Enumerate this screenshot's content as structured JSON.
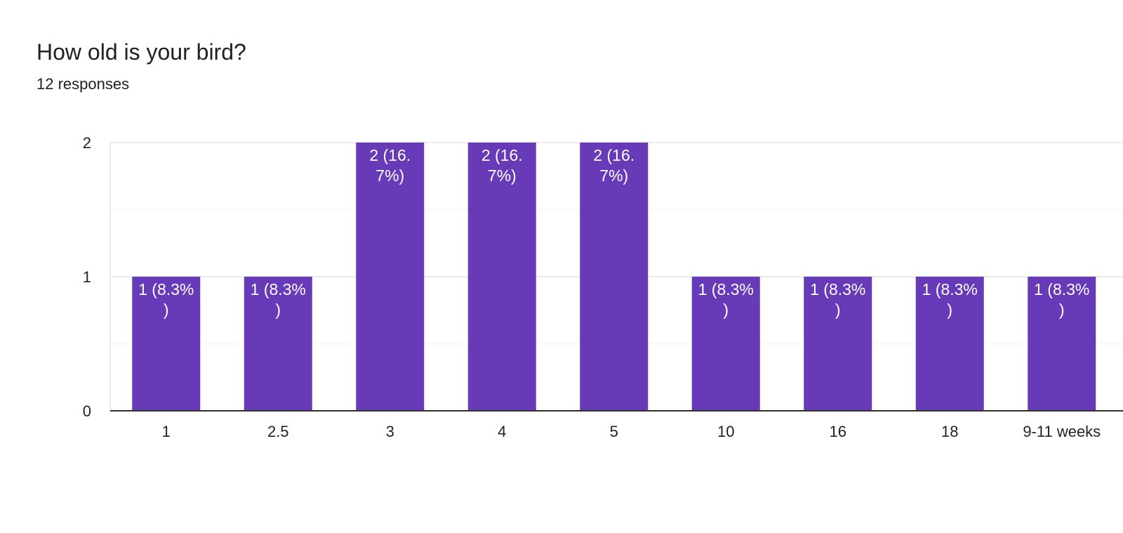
{
  "question": {
    "title": "How old is your bird?",
    "responses": "12 responses"
  },
  "colors": {
    "bar": "#673ab7",
    "bar_label": "#ffffff",
    "axis_text": "#222222",
    "grid_major": "#ebebeb",
    "grid_minor": "#f5f5f5",
    "baseline": "#333333"
  },
  "chart_data": {
    "type": "bar",
    "title": "How old is your bird?",
    "subtitle": "12 responses",
    "xlabel": "",
    "ylabel": "",
    "categories": [
      "1",
      "2.5",
      "3",
      "4",
      "5",
      "10",
      "16",
      "18",
      "9-11 weeks"
    ],
    "values": [
      1,
      1,
      2,
      2,
      2,
      1,
      1,
      1,
      1
    ],
    "data_labels": [
      [
        "1 (8.3%",
        ")"
      ],
      [
        "1 (8.3%",
        ")"
      ],
      [
        "2 (16.",
        "7%)"
      ],
      [
        "2 (16.",
        "7%)"
      ],
      [
        "2 (16.",
        "7%)"
      ],
      [
        "1 (8.3%",
        ")"
      ],
      [
        "1 (8.3%",
        ")"
      ],
      [
        "1 (8.3%",
        ")"
      ],
      [
        "1 (8.3%",
        ")"
      ]
    ],
    "ylim": [
      0,
      2
    ],
    "yticks": [
      0,
      1,
      2
    ],
    "grid": true,
    "legend": "none"
  }
}
